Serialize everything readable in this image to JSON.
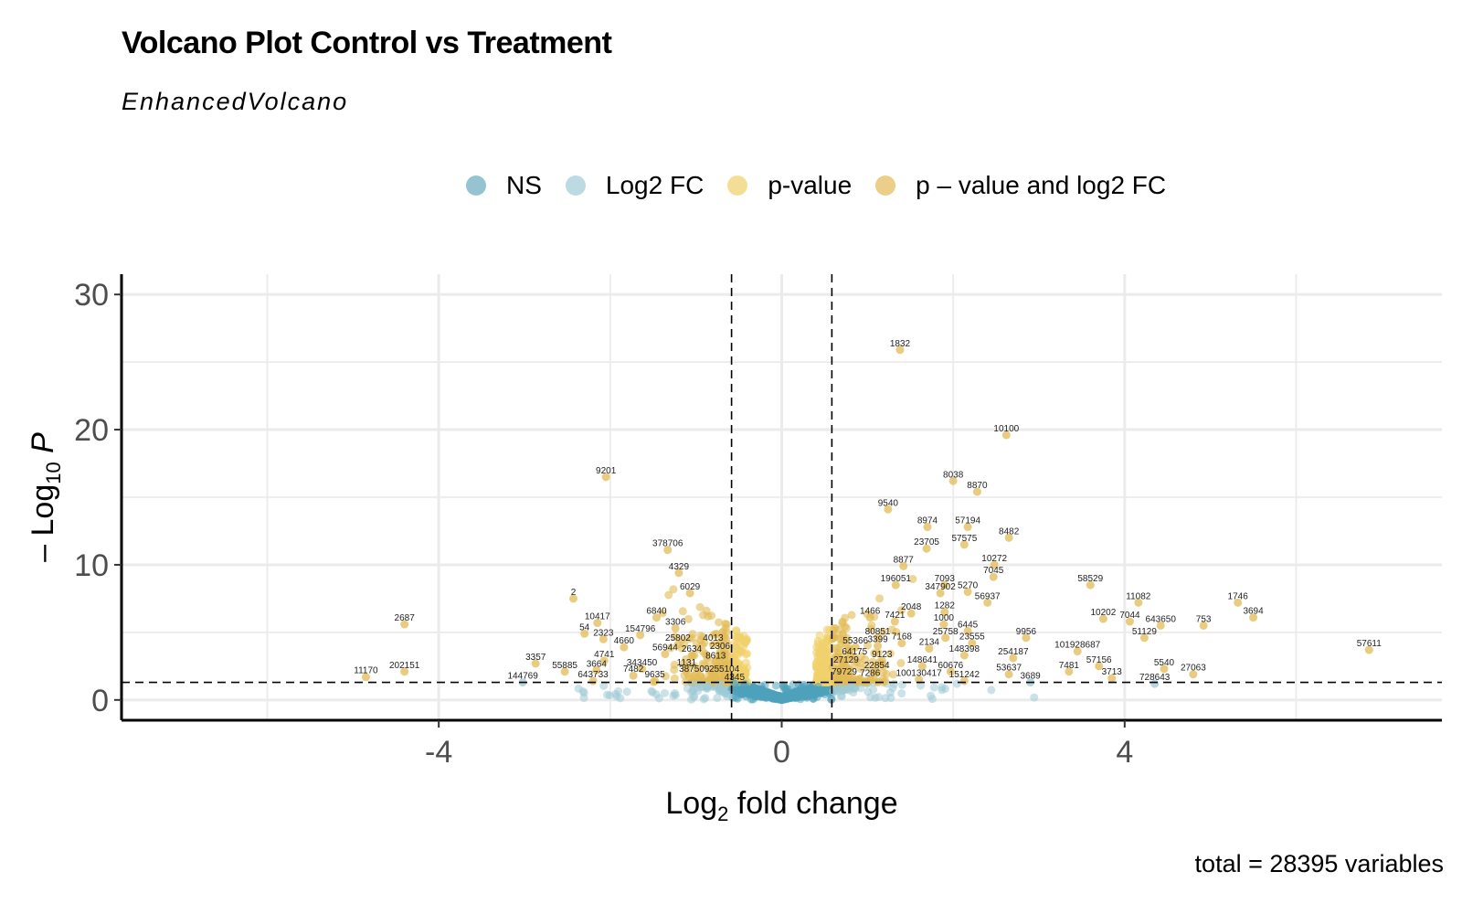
{
  "title": "Volcano Plot Control vs Treatment",
  "subtitle": "EnhancedVolcano",
  "caption": "total = 28395 variables",
  "legend": [
    {
      "key": "ns",
      "label": "NS",
      "color": "#6aa9be"
    },
    {
      "key": "fc",
      "label": "Log2 FC",
      "color": "#9ecbd6"
    },
    {
      "key": "p",
      "label": "p-value",
      "color": "#f0d06a"
    },
    {
      "key": "both",
      "label": "p – value and log2 FC",
      "color": "#e3bb55"
    }
  ],
  "chart_data": {
    "type": "scatter",
    "title": "Volcano Plot Control vs Treatment",
    "subtitle": "EnhancedVolcano",
    "xlabel": "Log2 fold change",
    "ylabel": "– Log10 P",
    "xlim": [
      -7.7,
      7.7
    ],
    "ylim": [
      -1.5,
      31.5
    ],
    "xticks": [
      -4,
      0,
      4
    ],
    "yticks": [
      0,
      10,
      20,
      30
    ],
    "grid": true,
    "legend_position": "top",
    "fc_cutoff": 0.585,
    "p_cutoff_log10": 1.3,
    "colors": {
      "NS": "#4fa3bb",
      "Log2 FC": "#9ecbd6",
      "p-value": "#f0d06a",
      "both": "#e3bb55"
    },
    "labeled_points": [
      {
        "label": "1832",
        "x": 1.38,
        "y": 25.9
      },
      {
        "label": "10100",
        "x": 2.62,
        "y": 19.6
      },
      {
        "label": "9201",
        "x": -2.05,
        "y": 16.5
      },
      {
        "label": "8038",
        "x": 2.0,
        "y": 16.2
      },
      {
        "label": "8870",
        "x": 2.28,
        "y": 15.4
      },
      {
        "label": "9540",
        "x": 1.24,
        "y": 14.1
      },
      {
        "label": "8974",
        "x": 1.7,
        "y": 12.8
      },
      {
        "label": "57194",
        "x": 2.17,
        "y": 12.8
      },
      {
        "label": "8482",
        "x": 2.65,
        "y": 12.0
      },
      {
        "label": "378706",
        "x": -1.33,
        "y": 11.1
      },
      {
        "label": "23705",
        "x": 1.69,
        "y": 11.2
      },
      {
        "label": "57575",
        "x": 2.13,
        "y": 11.5
      },
      {
        "label": "8877",
        "x": 1.42,
        "y": 9.9
      },
      {
        "label": "10272",
        "x": 2.48,
        "y": 10.0
      },
      {
        "label": "4329",
        "x": -1.2,
        "y": 9.4
      },
      {
        "label": "7045",
        "x": 2.47,
        "y": 9.1
      },
      {
        "label": "196051",
        "x": 1.33,
        "y": 8.5
      },
      {
        "label": "7093",
        "x": 1.9,
        "y": 8.5
      },
      {
        "label": "58529",
        "x": 3.6,
        "y": 8.5
      },
      {
        "label": "347902",
        "x": 1.85,
        "y": 7.9
      },
      {
        "label": "5270",
        "x": 2.17,
        "y": 8.0
      },
      {
        "label": "6029",
        "x": -1.07,
        "y": 7.9
      },
      {
        "label": "2",
        "x": -2.43,
        "y": 7.5
      },
      {
        "label": "56937",
        "x": 2.4,
        "y": 7.2
      },
      {
        "label": "11082",
        "x": 4.16,
        "y": 7.2
      },
      {
        "label": "1746",
        "x": 5.32,
        "y": 7.2
      },
      {
        "label": "1282",
        "x": 1.9,
        "y": 6.5
      },
      {
        "label": "2048",
        "x": 1.51,
        "y": 6.4
      },
      {
        "label": "1466",
        "x": 1.03,
        "y": 6.1
      },
      {
        "label": "3694",
        "x": 5.5,
        "y": 6.1
      },
      {
        "label": "6840",
        "x": -1.46,
        "y": 6.1
      },
      {
        "label": "7421",
        "x": 1.32,
        "y": 5.8
      },
      {
        "label": "10202",
        "x": 3.75,
        "y": 6.0
      },
      {
        "label": "7044",
        "x": 4.06,
        "y": 5.8
      },
      {
        "label": "10417",
        "x": -2.15,
        "y": 5.7
      },
      {
        "label": "1000",
        "x": 1.89,
        "y": 5.6
      },
      {
        "label": "643650",
        "x": 4.42,
        "y": 5.5
      },
      {
        "label": "753",
        "x": 4.92,
        "y": 5.5
      },
      {
        "label": "2687",
        "x": -4.4,
        "y": 5.6
      },
      {
        "label": "3306",
        "x": -1.24,
        "y": 5.3
      },
      {
        "label": "6445",
        "x": 2.17,
        "y": 5.1
      },
      {
        "label": "54",
        "x": -2.3,
        "y": 4.9
      },
      {
        "label": "154796",
        "x": -1.65,
        "y": 4.8
      },
      {
        "label": "80851",
        "x": 1.12,
        "y": 4.6
      },
      {
        "label": "9956",
        "x": 2.85,
        "y": 4.6
      },
      {
        "label": "25758",
        "x": 1.91,
        "y": 4.6
      },
      {
        "label": "51129",
        "x": 4.23,
        "y": 4.6
      },
      {
        "label": "2323",
        "x": -2.08,
        "y": 4.5
      },
      {
        "label": "7168",
        "x": 1.4,
        "y": 4.2
      },
      {
        "label": "23555",
        "x": 2.22,
        "y": 4.2
      },
      {
        "label": "4013",
        "x": -0.8,
        "y": 4.1
      },
      {
        "label": "25802",
        "x": -1.21,
        "y": 4.1
      },
      {
        "label": "55366",
        "x": 0.86,
        "y": 3.9
      },
      {
        "label": "3399",
        "x": 1.12,
        "y": 4.0
      },
      {
        "label": "4660",
        "x": -1.84,
        "y": 3.9
      },
      {
        "label": "2134",
        "x": 1.72,
        "y": 3.8
      },
      {
        "label": "101928687",
        "x": 3.45,
        "y": 3.6
      },
      {
        "label": "57611",
        "x": 6.85,
        "y": 3.7
      },
      {
        "label": "2306",
        "x": -0.72,
        "y": 3.5
      },
      {
        "label": "56944",
        "x": -1.36,
        "y": 3.4
      },
      {
        "label": "2634",
        "x": -1.05,
        "y": 3.3
      },
      {
        "label": "148398",
        "x": 2.13,
        "y": 3.3
      },
      {
        "label": "254187",
        "x": 2.7,
        "y": 3.1
      },
      {
        "label": "64175",
        "x": 0.85,
        "y": 3.1
      },
      {
        "label": "9123",
        "x": 1.17,
        "y": 2.9
      },
      {
        "label": "8613",
        "x": -0.77,
        "y": 2.8
      },
      {
        "label": "4741",
        "x": -2.07,
        "y": 2.9
      },
      {
        "label": "3357",
        "x": -2.87,
        "y": 2.7
      },
      {
        "label": "27129",
        "x": 0.75,
        "y": 2.5
      },
      {
        "label": "148641",
        "x": 1.64,
        "y": 2.5
      },
      {
        "label": "57156",
        "x": 3.7,
        "y": 2.5
      },
      {
        "label": "343450",
        "x": -1.63,
        "y": 2.3
      },
      {
        "label": "1131",
        "x": -1.11,
        "y": 2.3
      },
      {
        "label": "5540",
        "x": 4.46,
        "y": 2.3
      },
      {
        "label": "3664",
        "x": -2.16,
        "y": 2.2
      },
      {
        "label": "55885",
        "x": -2.53,
        "y": 2.1
      },
      {
        "label": "22854",
        "x": 1.11,
        "y": 2.1
      },
      {
        "label": "60676",
        "x": 1.97,
        "y": 2.1
      },
      {
        "label": "7481",
        "x": 3.35,
        "y": 2.1
      },
      {
        "label": "202151",
        "x": -4.4,
        "y": 2.1
      },
      {
        "label": "7482",
        "x": -1.73,
        "y": 1.8
      },
      {
        "label": "387509",
        "x": -1.02,
        "y": 1.8
      },
      {
        "label": "255104",
        "x": -0.67,
        "y": 1.8
      },
      {
        "label": "53637",
        "x": 2.65,
        "y": 1.9
      },
      {
        "label": "27063",
        "x": 4.8,
        "y": 1.9
      },
      {
        "label": "11170",
        "x": -4.85,
        "y": 1.7
      },
      {
        "label": "79729",
        "x": 0.73,
        "y": 1.6
      },
      {
        "label": "7286",
        "x": 1.03,
        "y": 1.5
      },
      {
        "label": "100130417",
        "x": 1.6,
        "y": 1.5
      },
      {
        "label": "3713",
        "x": 3.85,
        "y": 1.6
      },
      {
        "label": "9635",
        "x": -1.48,
        "y": 1.4
      },
      {
        "label": "144769",
        "x": -3.02,
        "y": 1.3
      },
      {
        "label": "643733",
        "x": -2.2,
        "y": 1.4
      },
      {
        "label": "151242",
        "x": 2.13,
        "y": 1.4
      },
      {
        "label": "3689",
        "x": 2.9,
        "y": 1.3
      },
      {
        "label": "728643",
        "x": 4.35,
        "y": 1.2
      },
      {
        "label": "4345",
        "x": -0.55,
        "y": 1.2
      }
    ]
  }
}
